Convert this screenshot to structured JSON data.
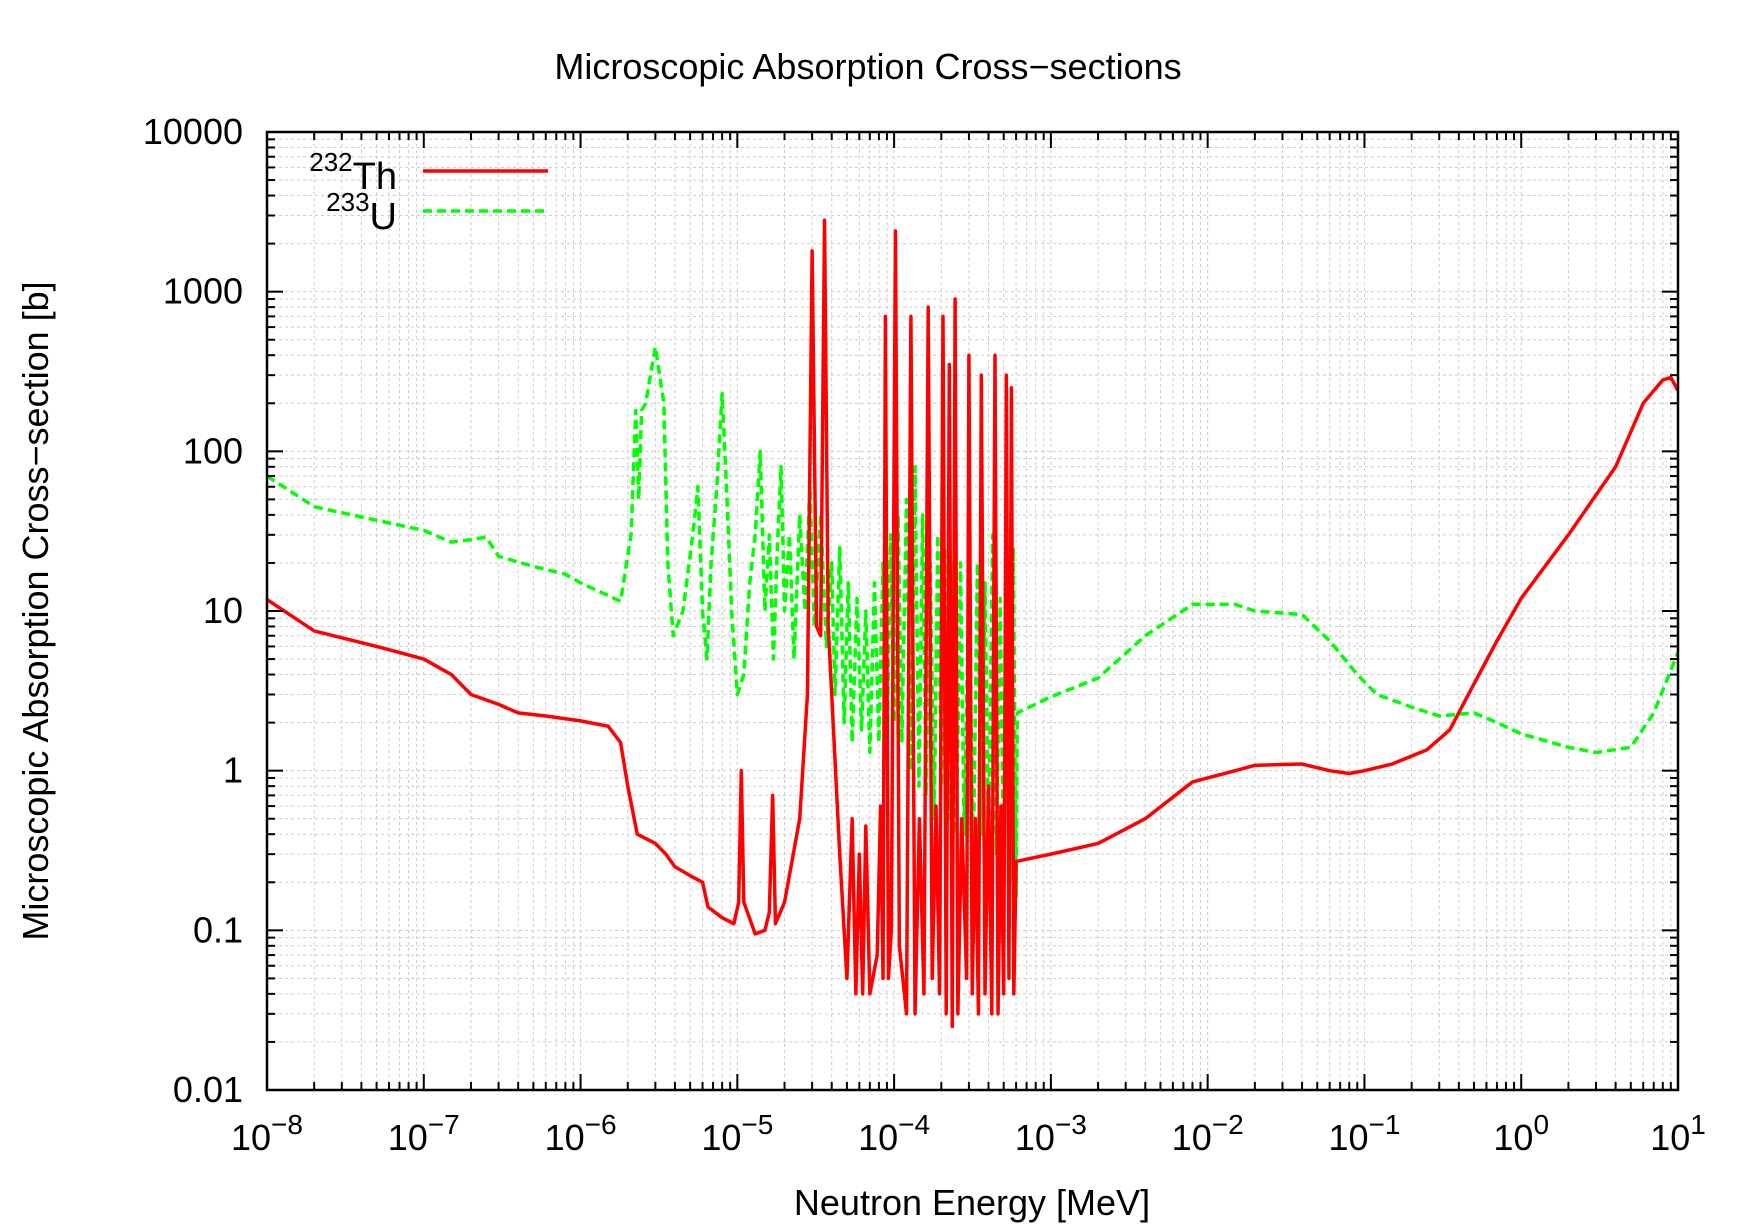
{
  "chart_data": {
    "type": "line",
    "title": "Microscopic Absorption Cross−sections",
    "xlabel": "Neutron Energy [MeV]",
    "ylabel": "Microscopic Absorption Cross−section [b]",
    "x_scale": "log",
    "y_scale": "log",
    "xlim": [
      1e-08,
      10
    ],
    "ylim": [
      0.01,
      10000
    ],
    "grid": true,
    "legend_position": "top-left",
    "x_ticks": [
      {
        "base": "10",
        "exp": "−8",
        "value": 1e-08
      },
      {
        "base": "10",
        "exp": "−7",
        "value": 1e-07
      },
      {
        "base": "10",
        "exp": "−6",
        "value": 1e-06
      },
      {
        "base": "10",
        "exp": "−5",
        "value": 1e-05
      },
      {
        "base": "10",
        "exp": "−4",
        "value": 0.0001
      },
      {
        "base": "10",
        "exp": "−3",
        "value": 0.001
      },
      {
        "base": "10",
        "exp": "−2",
        "value": 0.01
      },
      {
        "base": "10",
        "exp": "−1",
        "value": 0.1
      },
      {
        "base": "10",
        "exp": "0",
        "value": 1
      },
      {
        "base": "10",
        "exp": "1",
        "value": 10
      }
    ],
    "y_ticks": [
      {
        "label": "0.01",
        "value": 0.01
      },
      {
        "label": "0.1",
        "value": 0.1
      },
      {
        "label": "1",
        "value": 1
      },
      {
        "label": "10",
        "value": 10
      },
      {
        "label": "100",
        "value": 100
      },
      {
        "label": "1000",
        "value": 1000
      },
      {
        "label": "10000",
        "value": 10000
      }
    ],
    "series": [
      {
        "name_sup": "232",
        "name_main": "Th",
        "color": "#ff0000",
        "dash": "solid",
        "points": [
          [
            1e-08,
            11.8
          ],
          [
            2e-08,
            7.5
          ],
          [
            5e-08,
            6.0
          ],
          [
            1e-07,
            5.0
          ],
          [
            1.5e-07,
            4.0
          ],
          [
            2e-07,
            3.0
          ],
          [
            3e-07,
            2.6
          ],
          [
            4e-07,
            2.3
          ],
          [
            6e-07,
            2.2
          ],
          [
            1e-06,
            2.05
          ],
          [
            1.5e-06,
            1.9
          ],
          [
            1.8e-06,
            1.5
          ],
          [
            2e-06,
            0.8
          ],
          [
            2.3e-06,
            0.4
          ],
          [
            3e-06,
            0.35
          ],
          [
            3.5e-06,
            0.3
          ],
          [
            4e-06,
            0.25
          ],
          [
            5e-06,
            0.22
          ],
          [
            6e-06,
            0.2
          ],
          [
            6.5e-06,
            0.14
          ],
          [
            8e-06,
            0.12
          ],
          [
            9.5e-06,
            0.11
          ],
          [
            1.02e-05,
            0.15
          ],
          [
            1.06e-05,
            1.0
          ],
          [
            1.1e-05,
            0.15
          ],
          [
            1.3e-05,
            0.095
          ],
          [
            1.5e-05,
            0.1
          ],
          [
            1.6e-05,
            0.13
          ],
          [
            1.68e-05,
            0.7
          ],
          [
            1.75e-05,
            0.11
          ],
          [
            2e-05,
            0.15
          ],
          [
            2.5e-05,
            0.5
          ],
          [
            2.8e-05,
            3.0
          ],
          [
            3e-05,
            1800
          ],
          [
            3.2e-05,
            8
          ],
          [
            3.4e-05,
            7
          ],
          [
            3.6e-05,
            2800
          ],
          [
            3.8e-05,
            8
          ],
          [
            4e-05,
            3
          ],
          [
            4.5e-05,
            0.3
          ],
          [
            5e-05,
            0.05
          ],
          [
            5.4e-05,
            0.5
          ],
          [
            5.7e-05,
            0.04
          ],
          [
            6e-05,
            0.3
          ],
          [
            6.3e-05,
            0.04
          ],
          [
            6.6e-05,
            0.45
          ],
          [
            7e-05,
            0.04
          ],
          [
            7.8e-05,
            0.07
          ],
          [
            8.2e-05,
            0.6
          ],
          [
            8.5e-05,
            0.05
          ],
          [
            8.8e-05,
            700
          ],
          [
            9.2e-05,
            0.05
          ],
          [
            9.6e-05,
            0.1
          ],
          [
            0.000102,
            2400
          ],
          [
            0.000108,
            0.08
          ],
          [
            0.00012,
            0.03
          ],
          [
            0.000128,
            700
          ],
          [
            0.000136,
            0.03
          ],
          [
            0.000145,
            0.5
          ],
          [
            0.000155,
            0.04
          ],
          [
            0.000165,
            800
          ],
          [
            0.000175,
            0.05
          ],
          [
            0.000185,
            0.6
          ],
          [
            0.000195,
            0.04
          ],
          [
            0.000205,
            700
          ],
          [
            0.000215,
            0.03
          ],
          [
            0.000225,
            350
          ],
          [
            0.000235,
            0.025
          ],
          [
            0.000245,
            900
          ],
          [
            0.000255,
            0.03
          ],
          [
            0.00027,
            0.5
          ],
          [
            0.00029,
            0.05
          ],
          [
            0.0003,
            400
          ],
          [
            0.000315,
            0.04
          ],
          [
            0.00033,
            0.5
          ],
          [
            0.000345,
            0.03
          ],
          [
            0.00036,
            300
          ],
          [
            0.00038,
            0.04
          ],
          [
            0.0004,
            0.8
          ],
          [
            0.00042,
            0.03
          ],
          [
            0.00044,
            400
          ],
          [
            0.00046,
            0.03
          ],
          [
            0.00048,
            0.6
          ],
          [
            0.0005,
            0.04
          ],
          [
            0.00052,
            300
          ],
          [
            0.00054,
            0.05
          ],
          [
            0.00056,
            250
          ],
          [
            0.00058,
            0.04
          ],
          [
            0.0006,
            0.27
          ],
          [
            0.001,
            0.3
          ],
          [
            0.002,
            0.35
          ],
          [
            0.004,
            0.5
          ],
          [
            0.008,
            0.85
          ],
          [
            0.015,
            1.0
          ],
          [
            0.02,
            1.08
          ],
          [
            0.04,
            1.1
          ],
          [
            0.06,
            1.0
          ],
          [
            0.08,
            0.96
          ],
          [
            0.1,
            1.0
          ],
          [
            0.15,
            1.1
          ],
          [
            0.25,
            1.35
          ],
          [
            0.35,
            1.8
          ],
          [
            0.5,
            3.5
          ],
          [
            0.7,
            6.5
          ],
          [
            1,
            12
          ],
          [
            2,
            30
          ],
          [
            4,
            80
          ],
          [
            6,
            200
          ],
          [
            8,
            280
          ],
          [
            9,
            290
          ],
          [
            10,
            240
          ]
        ]
      },
      {
        "name_sup": "233",
        "name_main": "U",
        "color": "#00ff00",
        "dash": "dashed",
        "points": [
          [
            1e-08,
            70
          ],
          [
            2e-08,
            45
          ],
          [
            5e-08,
            37
          ],
          [
            1e-07,
            32
          ],
          [
            1.5e-07,
            27
          ],
          [
            2e-07,
            28
          ],
          [
            2.5e-07,
            29
          ],
          [
            3e-07,
            22
          ],
          [
            5e-07,
            19
          ],
          [
            8e-07,
            17
          ],
          [
            1e-06,
            15
          ],
          [
            1.5e-06,
            12.5
          ],
          [
            1.8e-06,
            11.5
          ],
          [
            2.1e-06,
            30
          ],
          [
            2.25e-06,
            180
          ],
          [
            2.35e-06,
            50
          ],
          [
            2.45e-06,
            180
          ],
          [
            2.6e-06,
            200
          ],
          [
            3e-06,
            450
          ],
          [
            3.4e-06,
            200
          ],
          [
            3.6e-06,
            20
          ],
          [
            3.9e-06,
            7
          ],
          [
            4.5e-06,
            10
          ],
          [
            5.2e-06,
            30
          ],
          [
            5.6e-06,
            60
          ],
          [
            6e-06,
            10
          ],
          [
            6.4e-06,
            5
          ],
          [
            6.8e-06,
            20
          ],
          [
            7.4e-06,
            60
          ],
          [
            8e-06,
            230
          ],
          [
            8.6e-06,
            50
          ],
          [
            9.2e-06,
            10
          ],
          [
            1e-05,
            3
          ],
          [
            1.1e-05,
            4
          ],
          [
            1.2e-05,
            15
          ],
          [
            1.3e-05,
            30
          ],
          [
            1.4e-05,
            100
          ],
          [
            1.5e-05,
            10
          ],
          [
            1.6e-05,
            30
          ],
          [
            1.7e-05,
            5
          ],
          [
            1.8e-05,
            25
          ],
          [
            1.9e-05,
            80
          ],
          [
            2e-05,
            10
          ],
          [
            2.15e-05,
            30
          ],
          [
            2.3e-05,
            5
          ],
          [
            2.5e-05,
            40
          ],
          [
            2.7e-05,
            10
          ],
          [
            2.9e-05,
            60
          ],
          [
            3.1e-05,
            8
          ],
          [
            3.4e-05,
            40
          ],
          [
            3.7e-05,
            6
          ],
          [
            4e-05,
            20
          ],
          [
            4.2e-05,
            3
          ],
          [
            4.5e-05,
            25
          ],
          [
            4.8e-05,
            2
          ],
          [
            5.1e-05,
            15
          ],
          [
            5.4e-05,
            1.5
          ],
          [
            5.8e-05,
            12
          ],
          [
            6.2e-05,
            1.8
          ],
          [
            6.6e-05,
            10
          ],
          [
            7e-05,
            1.3
          ],
          [
            7.5e-05,
            15
          ],
          [
            8e-05,
            1.5
          ],
          [
            8.5e-05,
            20
          ],
          [
            9e-05,
            1.2
          ],
          [
            9.5e-05,
            30
          ],
          [
            0.0001,
            2
          ],
          [
            0.000106,
            40
          ],
          [
            0.000112,
            1.5
          ],
          [
            0.00012,
            50
          ],
          [
            0.000128,
            1.0
          ],
          [
            0.000136,
            80
          ],
          [
            0.000144,
            0.8
          ],
          [
            0.000152,
            40
          ],
          [
            0.00016,
            0.7
          ],
          [
            0.00017,
            20
          ],
          [
            0.00018,
            0.5
          ],
          [
            0.00019,
            30
          ],
          [
            0.0002,
            0.8
          ],
          [
            0.00021,
            25
          ],
          [
            0.00022,
            0.5
          ],
          [
            0.000235,
            20
          ],
          [
            0.00025,
            0.4
          ],
          [
            0.000265,
            20
          ],
          [
            0.00028,
            0.4
          ],
          [
            0.0003,
            15
          ],
          [
            0.00032,
            0.3
          ],
          [
            0.00034,
            20
          ],
          [
            0.00036,
            0.4
          ],
          [
            0.00038,
            15
          ],
          [
            0.0004,
            0.3
          ],
          [
            0.000425,
            30
          ],
          [
            0.00045,
            0.3
          ],
          [
            0.000475,
            12
          ],
          [
            0.0005,
            0.25
          ],
          [
            0.000525,
            20
          ],
          [
            0.00055,
            0.2
          ],
          [
            0.000575,
            25
          ],
          [
            0.0006,
            0.16
          ],
          [
            0.00061,
            2.3
          ],
          [
            0.001,
            2.9
          ],
          [
            0.002,
            3.8
          ],
          [
            0.004,
            7
          ],
          [
            0.008,
            11
          ],
          [
            0.015,
            11
          ],
          [
            0.02,
            10
          ],
          [
            0.04,
            9.5
          ],
          [
            0.06,
            6.5
          ],
          [
            0.09,
            4
          ],
          [
            0.12,
            3
          ],
          [
            0.2,
            2.5
          ],
          [
            0.3,
            2.2
          ],
          [
            0.5,
            2.3
          ],
          [
            0.7,
            2.0
          ],
          [
            1,
            1.7
          ],
          [
            2,
            1.4
          ],
          [
            3,
            1.3
          ],
          [
            5,
            1.4
          ],
          [
            7,
            2.3
          ],
          [
            10,
            5.5
          ]
        ]
      }
    ]
  }
}
